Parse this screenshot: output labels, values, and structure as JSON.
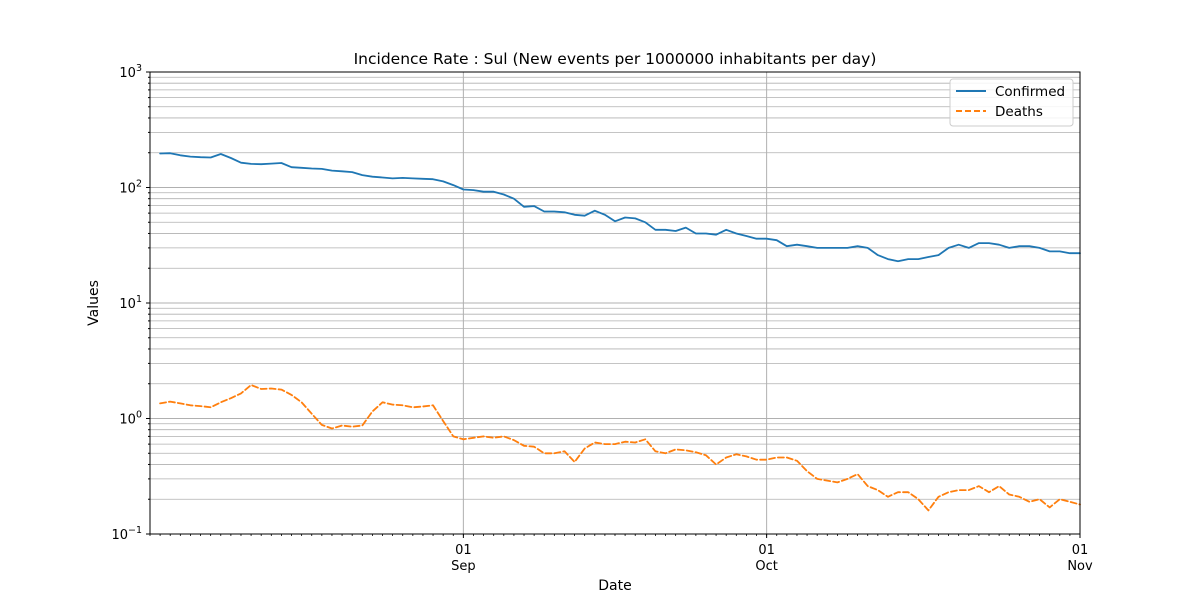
{
  "chart_data": {
    "type": "line",
    "title": "Incidence Rate : Sul  (New events per 1000000 inhabitants per day)",
    "xlabel": "Date",
    "ylabel": "Values",
    "y_scale": "log",
    "ylim": [
      0.1,
      1000
    ],
    "xlim": [
      "2021-08-01",
      "2021-11-01"
    ],
    "grid": true,
    "legend_position": "upper right",
    "y_ticks": [
      {
        "base": "10",
        "exp": "−1"
      },
      {
        "base": "10",
        "exp": "0"
      },
      {
        "base": "10",
        "exp": "1"
      },
      {
        "base": "10",
        "exp": "2"
      },
      {
        "base": "10",
        "exp": "3"
      }
    ],
    "x_ticks": [
      {
        "date": "2021-09-01",
        "day": "01",
        "month": "Sep"
      },
      {
        "date": "2021-10-01",
        "day": "01",
        "month": "Oct"
      },
      {
        "date": "2021-11-01",
        "day": "01",
        "month": "Nov"
      }
    ],
    "x": [
      "2021-08-02",
      "2021-08-03",
      "2021-08-04",
      "2021-08-05",
      "2021-08-06",
      "2021-08-07",
      "2021-08-08",
      "2021-08-09",
      "2021-08-10",
      "2021-08-11",
      "2021-08-12",
      "2021-08-13",
      "2021-08-14",
      "2021-08-15",
      "2021-08-16",
      "2021-08-17",
      "2021-08-18",
      "2021-08-19",
      "2021-08-20",
      "2021-08-21",
      "2021-08-22",
      "2021-08-23",
      "2021-08-24",
      "2021-08-25",
      "2021-08-26",
      "2021-08-27",
      "2021-08-28",
      "2021-08-29",
      "2021-08-30",
      "2021-08-31",
      "2021-09-01",
      "2021-09-02",
      "2021-09-03",
      "2021-09-04",
      "2021-09-05",
      "2021-09-06",
      "2021-09-07",
      "2021-09-08",
      "2021-09-09",
      "2021-09-10",
      "2021-09-11",
      "2021-09-12",
      "2021-09-13",
      "2021-09-14",
      "2021-09-15",
      "2021-09-16",
      "2021-09-17",
      "2021-09-18",
      "2021-09-19",
      "2021-09-20",
      "2021-09-21",
      "2021-09-22",
      "2021-09-23",
      "2021-09-24",
      "2021-09-25",
      "2021-09-26",
      "2021-09-27",
      "2021-09-28",
      "2021-09-29",
      "2021-09-30",
      "2021-10-01",
      "2021-10-02",
      "2021-10-03",
      "2021-10-04",
      "2021-10-05",
      "2021-10-06",
      "2021-10-07",
      "2021-10-08",
      "2021-10-09",
      "2021-10-10",
      "2021-10-11",
      "2021-10-12",
      "2021-10-13",
      "2021-10-14",
      "2021-10-15",
      "2021-10-16",
      "2021-10-17",
      "2021-10-18",
      "2021-10-19",
      "2021-10-20",
      "2021-10-21",
      "2021-10-22",
      "2021-10-23",
      "2021-10-24",
      "2021-10-25",
      "2021-10-26",
      "2021-10-27",
      "2021-10-28",
      "2021-10-29",
      "2021-10-30",
      "2021-10-31",
      "2021-11-01"
    ],
    "series": [
      {
        "name": "Confirmed",
        "color": "#1f77b4",
        "dash": "solid",
        "values": [
          197,
          198,
          190,
          185,
          183,
          182,
          195,
          180,
          164,
          160,
          159,
          161,
          163,
          150,
          148,
          146,
          145,
          140,
          138,
          136,
          128,
          124,
          122,
          120,
          121,
          120,
          119,
          118,
          113,
          105,
          96,
          95,
          92,
          92,
          87,
          80,
          68,
          69,
          62,
          62,
          61,
          58,
          57,
          63,
          58,
          51,
          55,
          54,
          50,
          43,
          43,
          42,
          45,
          40,
          40,
          39,
          43,
          40,
          38,
          36,
          36,
          35,
          31,
          32,
          31,
          30,
          30,
          30,
          30,
          31,
          30,
          26,
          24,
          23,
          24,
          24,
          25,
          26,
          30,
          32,
          30,
          33,
          33,
          32,
          30,
          31,
          31,
          30,
          28,
          28,
          27,
          27
        ]
      },
      {
        "name": "Deaths",
        "color": "#ff7f0e",
        "dash": "dashed",
        "values": [
          1.35,
          1.4,
          1.35,
          1.3,
          1.28,
          1.25,
          1.38,
          1.5,
          1.65,
          1.95,
          1.8,
          1.82,
          1.78,
          1.6,
          1.38,
          1.1,
          0.88,
          0.82,
          0.87,
          0.85,
          0.87,
          1.15,
          1.38,
          1.32,
          1.3,
          1.25,
          1.27,
          1.3,
          0.95,
          0.7,
          0.66,
          0.68,
          0.7,
          0.68,
          0.7,
          0.65,
          0.58,
          0.57,
          0.5,
          0.5,
          0.52,
          0.42,
          0.55,
          0.62,
          0.6,
          0.6,
          0.63,
          0.62,
          0.66,
          0.52,
          0.5,
          0.54,
          0.53,
          0.51,
          0.48,
          0.4,
          0.46,
          0.49,
          0.47,
          0.44,
          0.44,
          0.46,
          0.46,
          0.43,
          0.35,
          0.3,
          0.29,
          0.28,
          0.3,
          0.33,
          0.26,
          0.24,
          0.21,
          0.23,
          0.23,
          0.2,
          0.16,
          0.21,
          0.23,
          0.24,
          0.24,
          0.26,
          0.23,
          0.26,
          0.22,
          0.21,
          0.19,
          0.2,
          0.17,
          0.2,
          0.19,
          0.18
        ]
      }
    ]
  }
}
